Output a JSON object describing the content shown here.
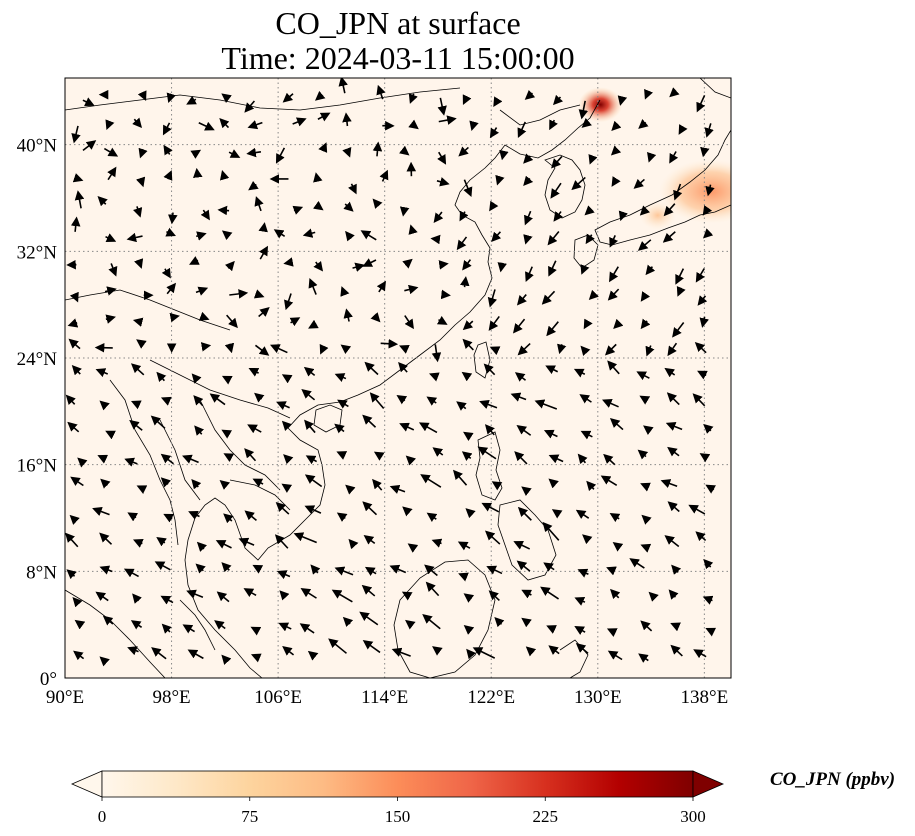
{
  "title": {
    "line1": "CO_JPN at surface",
    "line2": "Time: 2024-03-11 15:00:00"
  },
  "map": {
    "lon_range": [
      90,
      140
    ],
    "lat_range": [
      0,
      45
    ],
    "lon_ticks": [
      "90°E",
      "98°E",
      "106°E",
      "114°E",
      "122°E",
      "130°E",
      "138°E"
    ],
    "lat_ticks": [
      "0°",
      "8°N",
      "16°N",
      "24°N",
      "32°N",
      "40°N"
    ],
    "lon_tick_values": [
      90,
      98,
      106,
      114,
      122,
      130,
      138
    ],
    "lat_tick_values": [
      0,
      8,
      16,
      24,
      32,
      40
    ],
    "gridlines": "dotted",
    "background_color": "#fff5eb",
    "coastline_color": "#000000",
    "hotspots": [
      {
        "lon": 130.2,
        "lat": 43.0,
        "level": "high"
      },
      {
        "lon": 138.5,
        "lat": 36.5,
        "level": "moderate"
      },
      {
        "lon": 134.5,
        "lat": 34.7,
        "level": "low"
      }
    ]
  },
  "colorbar": {
    "label": "CO_JPN (ppbv)",
    "ticks": [
      "0",
      "75",
      "150",
      "225",
      "300"
    ],
    "tick_values": [
      0,
      75,
      150,
      225,
      300
    ],
    "min": 0,
    "max": 300,
    "extend": "both",
    "colormap": "OrRd",
    "colors": [
      "#fff7ec",
      "#fee8c8",
      "#fdd49e",
      "#fdbb84",
      "#fc8d59",
      "#ef6548",
      "#d7301f",
      "#b30000",
      "#7f0000"
    ]
  }
}
